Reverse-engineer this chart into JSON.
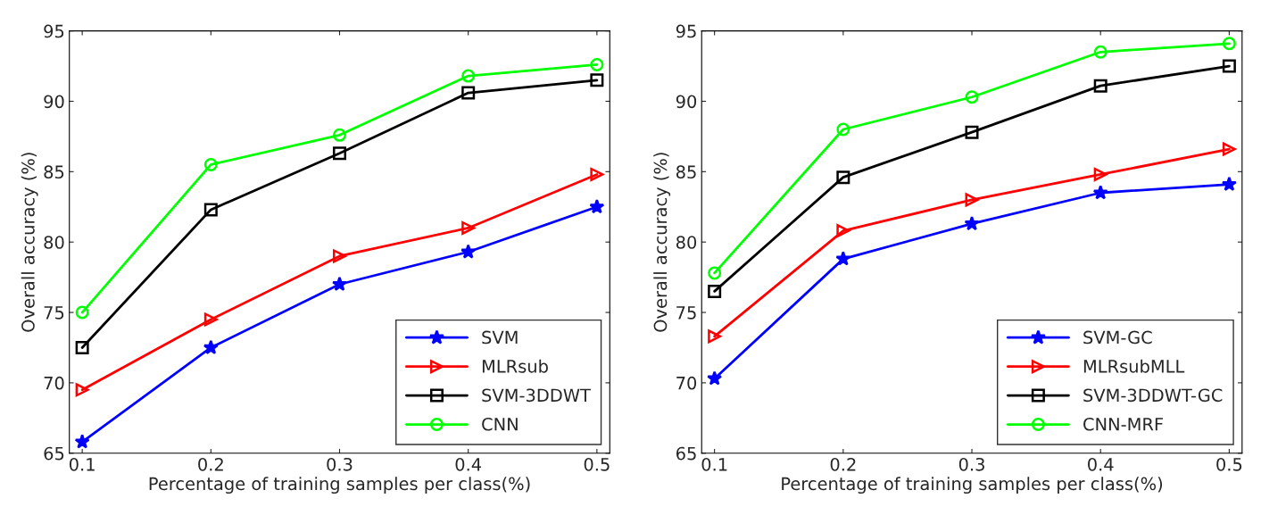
{
  "chart_data": [
    {
      "type": "line",
      "xlabel": "Percentage of training samples per class(%)",
      "ylabel": "Overall accuracy (%)",
      "x": [
        0.1,
        0.2,
        0.3,
        0.4,
        0.5
      ],
      "xlim": [
        0.09,
        0.51
      ],
      "xticks": [
        0.1,
        0.2,
        0.3,
        0.4,
        0.5
      ],
      "ylim": [
        65,
        95
      ],
      "yticks": [
        65,
        70,
        75,
        80,
        85,
        90,
        95
      ],
      "legend": "bottom right",
      "grid": false,
      "series": [
        {
          "name": "SVM",
          "color": "#0000ff",
          "marker": "star",
          "values": [
            65.8,
            72.5,
            77.0,
            79.3,
            82.5
          ]
        },
        {
          "name": "MLRsub",
          "color": "#ff0000",
          "marker": "triangle",
          "values": [
            69.5,
            74.5,
            79.0,
            81.0,
            84.8
          ]
        },
        {
          "name": "SVM-3DDWT",
          "color": "#000000",
          "marker": "square",
          "values": [
            72.5,
            82.3,
            86.3,
            90.6,
            91.5
          ]
        },
        {
          "name": "CNN",
          "color": "#00ff00",
          "marker": "circle",
          "values": [
            75.0,
            85.5,
            87.6,
            91.8,
            92.6
          ]
        }
      ]
    },
    {
      "type": "line",
      "xlabel": "Percentage of training samples per class(%)",
      "ylabel": "Overall accuracy (%)",
      "x": [
        0.1,
        0.2,
        0.3,
        0.4,
        0.5
      ],
      "xlim": [
        0.09,
        0.51
      ],
      "xticks": [
        0.1,
        0.2,
        0.3,
        0.4,
        0.5
      ],
      "ylim": [
        65,
        95
      ],
      "yticks": [
        65,
        70,
        75,
        80,
        85,
        90,
        95
      ],
      "legend": "bottom right",
      "grid": false,
      "series": [
        {
          "name": "SVM-GC",
          "color": "#0000ff",
          "marker": "star",
          "values": [
            70.3,
            78.8,
            81.3,
            83.5,
            84.1
          ]
        },
        {
          "name": "MLRsubMLL",
          "color": "#ff0000",
          "marker": "triangle",
          "values": [
            73.3,
            80.8,
            83.0,
            84.8,
            86.6
          ]
        },
        {
          "name": "SVM-3DDWT-GC",
          "color": "#000000",
          "marker": "square",
          "values": [
            76.5,
            84.6,
            87.8,
            91.1,
            92.5
          ]
        },
        {
          "name": "CNN-MRF",
          "color": "#00ff00",
          "marker": "circle",
          "values": [
            77.8,
            88.0,
            90.3,
            93.5,
            94.1
          ]
        }
      ]
    }
  ]
}
